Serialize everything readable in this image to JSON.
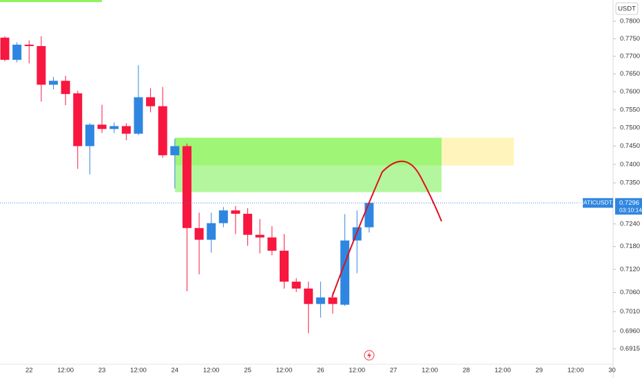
{
  "chart_data": {
    "type": "candlestick",
    "currency": "USDT",
    "log_scale": true,
    "ylim": [
      0.6876,
      0.7861
    ],
    "yticks": [
      {
        "value": 0.78,
        "label": "0.7800"
      },
      {
        "value": 0.775,
        "label": "0.7750"
      },
      {
        "value": 0.77,
        "label": "0.7700"
      },
      {
        "value": 0.765,
        "label": "0.7650"
      },
      {
        "value": 0.76,
        "label": "0.7600"
      },
      {
        "value": 0.755,
        "label": "0.7550"
      },
      {
        "value": 0.75,
        "label": "0.7500"
      },
      {
        "value": 0.745,
        "label": "0.7450"
      },
      {
        "value": 0.74,
        "label": "0.7400"
      },
      {
        "value": 0.735,
        "label": "0.7350"
      },
      {
        "value": 0.724,
        "label": "0.7240"
      },
      {
        "value": 0.718,
        "label": "0.7180"
      },
      {
        "value": 0.712,
        "label": "0.7120"
      },
      {
        "value": 0.706,
        "label": "0.7060"
      },
      {
        "value": 0.701,
        "label": "0.7010"
      },
      {
        "value": 0.696,
        "label": "0.6960"
      },
      0.6915
    ],
    "x_labels": [
      "22",
      "12:00",
      "23",
      "12:00",
      "24",
      "12:00",
      "25",
      "12:00",
      "26",
      "12:00",
      "27",
      "12:00",
      "28",
      "12:00",
      "29",
      "12:00",
      "30"
    ],
    "up_color": "#2f86e0",
    "down_color": "#f7173f",
    "open": [
      0.7753,
      0.769,
      0.7733,
      0.7729,
      0.762,
      0.7631,
      0.7596,
      0.745,
      0.7509,
      0.7497,
      0.7505,
      0.7484,
      0.7585,
      0.756,
      0.7425,
      0.745,
      0.7229,
      0.7198,
      0.7242,
      0.7276,
      0.7267,
      0.7211,
      0.7204,
      0.7169,
      0.7088,
      0.707,
      0.703,
      0.7047,
      0.7028,
      0.7196,
      0.7231
    ],
    "high": [
      0.7757,
      0.774,
      0.7745,
      0.7757,
      0.7642,
      0.7645,
      0.7603,
      0.7513,
      0.7564,
      0.7515,
      0.7513,
      0.7675,
      0.761,
      0.7614,
      0.747,
      0.7457,
      0.727,
      0.727,
      0.7285,
      0.7288,
      0.7282,
      0.7253,
      0.7234,
      0.7213,
      0.7097,
      0.7088,
      0.7088,
      0.706,
      0.7266,
      0.7276,
      0.7296
    ],
    "low": [
      0.7686,
      0.7683,
      0.768,
      0.7573,
      0.7607,
      0.7563,
      0.7388,
      0.7373,
      0.7486,
      0.7486,
      0.7466,
      0.748,
      0.7543,
      0.7418,
      0.7335,
      0.7063,
      0.7107,
      0.7164,
      0.7231,
      0.7213,
      0.7182,
      0.7162,
      0.7157,
      0.707,
      0.7061,
      0.6955,
      0.6995,
      0.7005,
      0.7025,
      0.711,
      0.7217
    ],
    "close": [
      0.769,
      0.7733,
      0.7729,
      0.762,
      0.7631,
      0.7594,
      0.745,
      0.7509,
      0.7497,
      0.7505,
      0.7484,
      0.7585,
      0.756,
      0.7425,
      0.745,
      0.7229,
      0.7198,
      0.7242,
      0.7276,
      0.7267,
      0.7211,
      0.7204,
      0.7169,
      0.7088,
      0.707,
      0.703,
      0.7047,
      0.703,
      0.7196,
      0.7231,
      0.7296
    ],
    "zones": [
      {
        "color": "#8ef35e",
        "top": 0.7473,
        "bottom": 0.7397
      },
      {
        "color": "#a6f58c",
        "top": 0.7397,
        "bottom": 0.7325
      },
      {
        "color": "#fff3b0",
        "top": 0.7473,
        "bottom": 0.7397
      }
    ],
    "last_price": {
      "symbol": "MATICUSDT.P",
      "value": 0.7296,
      "countdown": "03:10:14"
    }
  }
}
